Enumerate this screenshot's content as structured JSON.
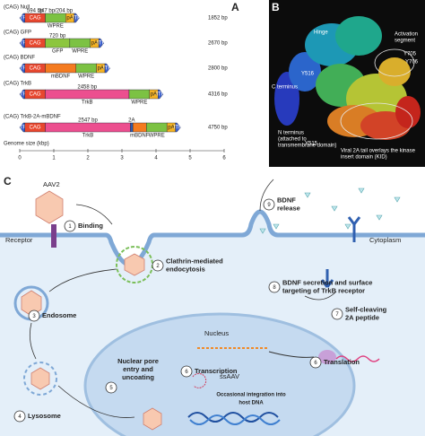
{
  "panel_a": {
    "label": "A",
    "constructs": [
      {
        "name": "(CAG) Null",
        "size": "1852 bp",
        "above": [
          "594 bp",
          "247 bp/204 bp"
        ],
        "inside": [
          "ITR",
          "CAG",
          "pA",
          "ITR"
        ],
        "below": [
          "WPRE"
        ]
      },
      {
        "name": "(CAG) GFP",
        "size": "2670 bp",
        "above": [
          "720 bp"
        ],
        "inside": [
          "ITR",
          "CAG",
          "pA",
          "ITR"
        ],
        "below": [
          "GFP",
          "WPRE"
        ]
      },
      {
        "name": "(CAG) BDNF",
        "size": "2800 bp",
        "inside": [
          "ITR",
          "CAG",
          "pA",
          "ITR"
        ],
        "below": [
          "mBDNF",
          "WPRE"
        ]
      },
      {
        "name": "(CAG) TrkB",
        "size": "4316 bp",
        "above": [
          "2458 bp"
        ],
        "inside": [
          "ITR",
          "CAG",
          "pA",
          "ITR"
        ],
        "below": [
          "TrkB",
          "WPRE"
        ]
      },
      {
        "name": "(CAG) TrkB-2A-mBDNF",
        "size": "4750 bp",
        "above": [
          "2547 bp",
          "2A"
        ],
        "inside": [
          "ITR",
          "CAG",
          "pA",
          "ITR"
        ],
        "below": [
          "TrkB",
          "mBDNF",
          "WPRE"
        ]
      }
    ],
    "axis_title": "Genome size (kbp)",
    "axis_ticks": [
      "0",
      "1",
      "2",
      "3",
      "4",
      "5",
      "6"
    ]
  },
  "panel_b": {
    "label": "B",
    "labels": [
      [
        "Hinge"
      ],
      [
        "Activation",
        "segment"
      ],
      [
        "Y705"
      ],
      [
        "Y706"
      ],
      [
        "Y516"
      ],
      [
        "C terminus"
      ],
      [
        "N terminus",
        "(attached to",
        "transmembrane domain)"
      ],
      [
        "Y515"
      ],
      [
        "Viral 2A tail overlays the kinase",
        "insert domain (KID)"
      ]
    ]
  },
  "panel_c": {
    "label": "C",
    "labels": [
      "AAV2",
      "Receptor",
      "Nucleus",
      "ssAAV",
      "Cytoplasm"
    ],
    "integration": [
      "Occasional integration into",
      "host DNA"
    ],
    "steps": [
      {
        "number": "1",
        "lines": [
          "Binding"
        ]
      },
      {
        "number": "2",
        "lines": [
          "Clathrin-mediated",
          "endocytosis"
        ]
      },
      {
        "number": "3",
        "lines": [
          "Endosome"
        ]
      },
      {
        "number": "4",
        "lines": [
          "Lysosome"
        ]
      },
      {
        "number": "5",
        "lines": [
          "Nuclear pore",
          "entry and",
          "uncoating"
        ]
      },
      {
        "number": "6",
        "lines": [
          "Transcription"
        ]
      },
      {
        "number": "6",
        "lines": [
          "Translation"
        ]
      },
      {
        "number": "7",
        "lines": [
          "Self-cleaving",
          "2A peptide"
        ]
      },
      {
        "number": "8",
        "lines": [
          "BDNF secretion and surface",
          "targeting of TrkB receptor"
        ]
      },
      {
        "number": "9",
        "lines": [
          "BDNF",
          "release"
        ]
      }
    ]
  }
}
